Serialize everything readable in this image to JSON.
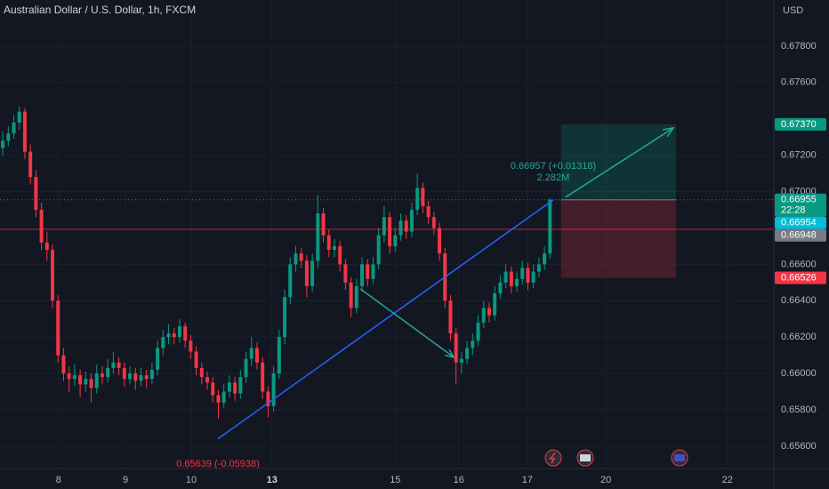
{
  "chart_data": {
    "type": "candlestick",
    "title": "Australian Dollar / U.S. Dollar, 1h, FXCM",
    "currency": "USD",
    "up_color": "#089981",
    "down_color": "#f23645",
    "xlim": [
      0,
      140
    ],
    "ylim": [
      0.65477,
      0.68054
    ],
    "grid": true,
    "yticks": [
      {
        "value": 0.678,
        "label": "0.67800"
      },
      {
        "value": 0.676,
        "label": "0.67600"
      },
      {
        "value": 0.672,
        "label": "0.67200"
      },
      {
        "value": 0.67,
        "label": "0.67000"
      },
      {
        "value": 0.666,
        "label": "0.66600"
      },
      {
        "value": 0.664,
        "label": "0.66400"
      },
      {
        "value": 0.662,
        "label": "0.66200"
      },
      {
        "value": 0.66,
        "label": "0.66000"
      },
      {
        "value": 0.658,
        "label": "0.65800"
      },
      {
        "value": 0.656,
        "label": "0.65600"
      }
    ],
    "xticks": [
      {
        "value": 10.6,
        "label": "8"
      },
      {
        "value": 22.7,
        "label": "9"
      },
      {
        "value": 34.6,
        "label": "10"
      },
      {
        "value": 49.2,
        "label": "13"
      },
      {
        "value": 71.5,
        "label": "15"
      },
      {
        "value": 83,
        "label": "16"
      },
      {
        "value": 95.4,
        "label": "17"
      },
      {
        "value": 109.6,
        "label": "20"
      },
      {
        "value": 131.6,
        "label": "22"
      }
    ],
    "ohlc": [
      [
        0.6724,
        0.6733,
        0.672,
        0.6728
      ],
      [
        0.6728,
        0.6736,
        0.6725,
        0.6732
      ],
      [
        0.6732,
        0.6742,
        0.6729,
        0.6738
      ],
      [
        0.6738,
        0.6747,
        0.6734,
        0.6744
      ],
      [
        0.6744,
        0.6746,
        0.6718,
        0.6722
      ],
      [
        0.6722,
        0.6726,
        0.6704,
        0.6708
      ],
      [
        0.6708,
        0.6712,
        0.6686,
        0.669
      ],
      [
        0.669,
        0.6694,
        0.6668,
        0.6672
      ],
      [
        0.6672,
        0.6678,
        0.6662,
        0.6668
      ],
      [
        0.6668,
        0.6671,
        0.6636,
        0.664
      ],
      [
        0.664,
        0.6643,
        0.6606,
        0.661
      ],
      [
        0.661,
        0.6614,
        0.6596,
        0.66
      ],
      [
        0.66,
        0.6604,
        0.659,
        0.6597
      ],
      [
        0.6597,
        0.6605,
        0.6593,
        0.6599
      ],
      [
        0.6599,
        0.6602,
        0.6587,
        0.6594
      ],
      [
        0.6594,
        0.6601,
        0.659,
        0.6597
      ],
      [
        0.6597,
        0.66,
        0.6584,
        0.6592
      ],
      [
        0.6592,
        0.6605,
        0.6589,
        0.66
      ],
      [
        0.66,
        0.6604,
        0.6594,
        0.6598
      ],
      [
        0.6598,
        0.6608,
        0.6595,
        0.6603
      ],
      [
        0.6603,
        0.6612,
        0.66,
        0.6606
      ],
      [
        0.6606,
        0.6609,
        0.6599,
        0.6603
      ],
      [
        0.6603,
        0.6606,
        0.6593,
        0.6597
      ],
      [
        0.6597,
        0.6604,
        0.6594,
        0.66
      ],
      [
        0.66,
        0.6603,
        0.6591,
        0.6596
      ],
      [
        0.6596,
        0.6603,
        0.6593,
        0.6599
      ],
      [
        0.6599,
        0.6602,
        0.6592,
        0.6597
      ],
      [
        0.6597,
        0.6606,
        0.6594,
        0.6602
      ],
      [
        0.6602,
        0.6618,
        0.6599,
        0.6614
      ],
      [
        0.6614,
        0.6624,
        0.661,
        0.662
      ],
      [
        0.662,
        0.6627,
        0.6616,
        0.6622
      ],
      [
        0.6622,
        0.6625,
        0.6616,
        0.662
      ],
      [
        0.662,
        0.663,
        0.6617,
        0.6626
      ],
      [
        0.6626,
        0.6628,
        0.6614,
        0.6618
      ],
      [
        0.6618,
        0.6621,
        0.6608,
        0.6612
      ],
      [
        0.6612,
        0.6615,
        0.6599,
        0.6603
      ],
      [
        0.6603,
        0.6606,
        0.6594,
        0.6598
      ],
      [
        0.6598,
        0.6601,
        0.6591,
        0.6595
      ],
      [
        0.6595,
        0.6598,
        0.6584,
        0.6588
      ],
      [
        0.6588,
        0.6591,
        0.6575,
        0.6584
      ],
      [
        0.6584,
        0.6594,
        0.6581,
        0.659
      ],
      [
        0.659,
        0.6599,
        0.6587,
        0.6595
      ],
      [
        0.6595,
        0.6598,
        0.6585,
        0.6589
      ],
      [
        0.6589,
        0.6602,
        0.6586,
        0.6598
      ],
      [
        0.6598,
        0.6612,
        0.6595,
        0.6608
      ],
      [
        0.6608,
        0.662,
        0.6604,
        0.6614
      ],
      [
        0.6614,
        0.6617,
        0.6602,
        0.6606
      ],
      [
        0.6606,
        0.6609,
        0.6586,
        0.659
      ],
      [
        0.659,
        0.6593,
        0.6576,
        0.6582
      ],
      [
        0.6582,
        0.6604,
        0.6579,
        0.66
      ],
      [
        0.66,
        0.6624,
        0.6597,
        0.662
      ],
      [
        0.662,
        0.6646,
        0.6616,
        0.6642
      ],
      [
        0.6642,
        0.6664,
        0.6638,
        0.666
      ],
      [
        0.666,
        0.667,
        0.6656,
        0.6666
      ],
      [
        0.6666,
        0.6669,
        0.6658,
        0.6662
      ],
      [
        0.6662,
        0.6665,
        0.6642,
        0.6648
      ],
      [
        0.6648,
        0.6666,
        0.6645,
        0.6662
      ],
      [
        0.6662,
        0.6698,
        0.6658,
        0.6688
      ],
      [
        0.6688,
        0.6691,
        0.6672,
        0.6676
      ],
      [
        0.6676,
        0.6679,
        0.6664,
        0.6668
      ],
      [
        0.6668,
        0.6674,
        0.6664,
        0.667
      ],
      [
        0.667,
        0.6673,
        0.6656,
        0.666
      ],
      [
        0.666,
        0.6663,
        0.6646,
        0.665
      ],
      [
        0.665,
        0.6653,
        0.6631,
        0.6636
      ],
      [
        0.6636,
        0.6652,
        0.6633,
        0.6648
      ],
      [
        0.6648,
        0.6664,
        0.6645,
        0.666
      ],
      [
        0.666,
        0.6663,
        0.6648,
        0.6652
      ],
      [
        0.6652,
        0.6664,
        0.6649,
        0.666
      ],
      [
        0.666,
        0.668,
        0.6657,
        0.6676
      ],
      [
        0.6676,
        0.6692,
        0.6672,
        0.6686
      ],
      [
        0.6686,
        0.6689,
        0.6666,
        0.667
      ],
      [
        0.667,
        0.668,
        0.6667,
        0.6676
      ],
      [
        0.6676,
        0.6688,
        0.6673,
        0.6684
      ],
      [
        0.6684,
        0.6687,
        0.6674,
        0.6678
      ],
      [
        0.6678,
        0.6694,
        0.6675,
        0.669
      ],
      [
        0.669,
        0.671,
        0.6687,
        0.6702
      ],
      [
        0.6702,
        0.6705,
        0.6688,
        0.6692
      ],
      [
        0.6692,
        0.6695,
        0.6682,
        0.6686
      ],
      [
        0.6686,
        0.6689,
        0.6676,
        0.668
      ],
      [
        0.668,
        0.6683,
        0.6662,
        0.6666
      ],
      [
        0.6666,
        0.6669,
        0.6636,
        0.664
      ],
      [
        0.664,
        0.6643,
        0.6618,
        0.6622
      ],
      [
        0.6622,
        0.6625,
        0.6594,
        0.6606
      ],
      [
        0.6606,
        0.6612,
        0.66,
        0.6608
      ],
      [
        0.6608,
        0.6618,
        0.6605,
        0.6614
      ],
      [
        0.6614,
        0.6622,
        0.661,
        0.6618
      ],
      [
        0.6618,
        0.6632,
        0.6615,
        0.6628
      ],
      [
        0.6628,
        0.664,
        0.6625,
        0.6636
      ],
      [
        0.6636,
        0.6639,
        0.6628,
        0.6632
      ],
      [
        0.6632,
        0.6648,
        0.6629,
        0.6644
      ],
      [
        0.6644,
        0.6654,
        0.6641,
        0.665
      ],
      [
        0.665,
        0.666,
        0.6647,
        0.6656
      ],
      [
        0.6656,
        0.6659,
        0.6644,
        0.6648
      ],
      [
        0.6648,
        0.6656,
        0.6645,
        0.6652
      ],
      [
        0.6652,
        0.6662,
        0.6649,
        0.6658
      ],
      [
        0.6658,
        0.6661,
        0.6646,
        0.665
      ],
      [
        0.665,
        0.666,
        0.6647,
        0.6656
      ],
      [
        0.6656,
        0.6664,
        0.6653,
        0.666
      ],
      [
        0.666,
        0.667,
        0.6657,
        0.6666
      ],
      [
        0.6666,
        0.66965,
        0.6663,
        0.66955
      ]
    ],
    "trendline": {
      "x": [
        39.4,
        100.1
      ],
      "y": [
        0.6564,
        0.66955
      ],
      "color": "#2962ff"
    },
    "cross_arrow": {
      "x": [
        65.2,
        82.1
      ],
      "y": [
        0.66465,
        0.66089
      ],
      "color": "#22ab94"
    },
    "hline": {
      "value": 0.66793,
      "color": "#f23645"
    },
    "last_line": {
      "value": 0.66955
    },
    "position": {
      "x": [
        101.5,
        122.3
      ],
      "target": 0.6737,
      "entry": 0.66955,
      "stop": 0.66526,
      "arrow_x": [
        102.3,
        121.8
      ],
      "arrow_y": [
        0.66969,
        0.6735
      ]
    },
    "position_label": "0.66957 (+0.01318)",
    "position_volume": "2.282M",
    "low_label": "0.65639 (-0.05938)",
    "badges": [
      {
        "value": 0.6737,
        "label": "0.67370",
        "color": "#089981"
      },
      {
        "value": 0.66955,
        "label": "0.66955",
        "color": "#089981",
        "sub": "22:28"
      },
      {
        "value": 0.66954,
        "label": "0.66954",
        "color": "#00bcd4"
      },
      {
        "value": 0.66948,
        "label": "0.66948",
        "color": "#787b86"
      },
      {
        "value": 0.66526,
        "label": "0.66526",
        "color": "#f23645"
      }
    ]
  }
}
